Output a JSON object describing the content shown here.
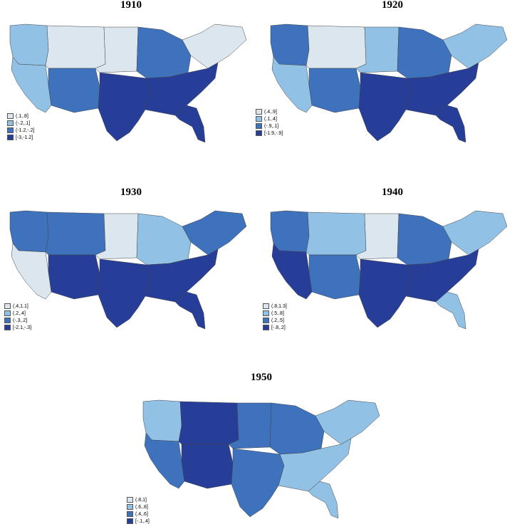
{
  "colors": {
    "class1": "#dce6ee",
    "class2": "#92c1e6",
    "class3": "#3e72bd",
    "class4": "#263e98"
  },
  "maps": [
    {
      "year": "1910",
      "legend": [
        "(.1,.8]",
        "(-.2,.1]",
        "(-1.2,-.2]",
        "[-3,-1.2]"
      ],
      "regions": {
        "northwest": "class2",
        "west": "class2",
        "mountain": "class1",
        "plains": "class1",
        "midwest": "class3",
        "northeast": "class1",
        "southwest": "class3",
        "south": "class4",
        "southeast": "class4",
        "florida": "class4"
      }
    },
    {
      "year": "1920",
      "legend": [
        "(.4,.9]",
        "(.1,.4]",
        "(-.9,.1]",
        "[-1.9,-.9]"
      ],
      "regions": {
        "northwest": "class3",
        "west": "class2",
        "mountain": "class1",
        "plains": "class2",
        "midwest": "class3",
        "northeast": "class2",
        "southwest": "class3",
        "south": "class4",
        "southeast": "class4",
        "florida": "class4"
      }
    },
    {
      "year": "1930",
      "legend": [
        "(.4,1.1]",
        "(.2,.4]",
        "(-.3,.2]",
        "[-2.1,-.3]"
      ],
      "regions": {
        "northwest": "class3",
        "west": "class1",
        "mountain": "class3",
        "plains": "class1",
        "midwest": "class2",
        "northeast": "class3",
        "southwest": "class4",
        "south": "class4",
        "southeast": "class4",
        "florida": "class4"
      }
    },
    {
      "year": "1940",
      "legend": [
        "(.8,1.3]",
        "(.5,.8]",
        "(.2,.5]",
        "[-.8,.2]"
      ],
      "regions": {
        "northwest": "class3",
        "west": "class4",
        "mountain": "class2",
        "plains": "class1",
        "midwest": "class3",
        "northeast": "class2",
        "southwest": "class3",
        "south": "class4",
        "southeast": "class4",
        "florida": "class2"
      }
    },
    {
      "year": "1950",
      "legend": [
        "(.8,1]",
        "(.6,.8]",
        "(.4,.6]",
        "[-.1,.4]"
      ],
      "regions": {
        "northwest": "class2",
        "west": "class3",
        "mountain": "class4",
        "plains": "class3",
        "midwest": "class3",
        "northeast": "class2",
        "southwest": "class4",
        "south": "class3",
        "southeast": "class2",
        "florida": "class2"
      }
    }
  ]
}
